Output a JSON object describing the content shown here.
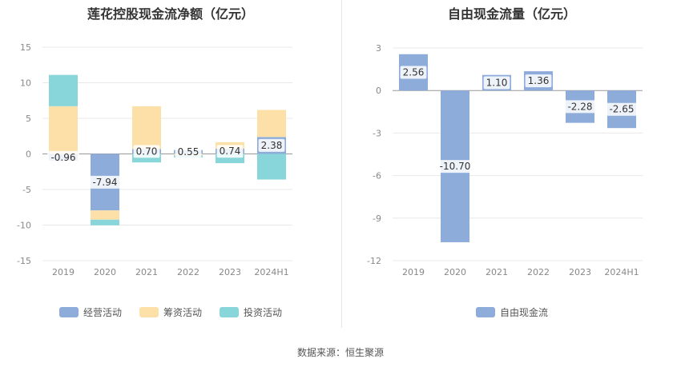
{
  "charts": [
    {
      "id": "left",
      "chart_data": {
        "type": "bar",
        "stacked": true,
        "title": "莲花控股现金流净额（亿元）",
        "categories": [
          "2019",
          "2020",
          "2021",
          "2022",
          "2023",
          "2024H1"
        ],
        "ylim": [
          -15,
          15
        ],
        "yticks": [
          15,
          10,
          5,
          0,
          -5,
          -10,
          -15
        ],
        "grid": true,
        "legend_position": "bottom",
        "series": [
          {
            "name": "经营活动",
            "color": "#8eacda",
            "values": [
              -0.96,
              -7.94,
              0.7,
              0.55,
              0.74,
              2.38
            ]
          },
          {
            "name": "筹资活动",
            "color": "#fddfa8",
            "values": [
              6.7,
              -1.3,
              6.0,
              -0.2,
              0.9,
              3.8
            ]
          },
          {
            "name": "投资活动",
            "color": "#88d6d9",
            "values": [
              4.4,
              -0.8,
              -1.2,
              -0.3,
              -1.3,
              -3.6
            ]
          }
        ],
        "data_labels": [
          "-0.96",
          "-7.94",
          "0.70",
          "0.55",
          "0.74",
          "2.38"
        ]
      }
    },
    {
      "id": "right",
      "chart_data": {
        "type": "bar",
        "title": "自由现金流量（亿元）",
        "categories": [
          "2019",
          "2020",
          "2021",
          "2022",
          "2023",
          "2024H1"
        ],
        "ylim": [
          -12,
          3
        ],
        "yticks": [
          3,
          0,
          -3,
          -6,
          -9,
          -12
        ],
        "grid": true,
        "legend_position": "bottom",
        "series": [
          {
            "name": "自由现金流",
            "color": "#8eacda",
            "values": [
              2.56,
              -10.7,
              1.1,
              1.36,
              -2.28,
              -2.65
            ]
          }
        ],
        "data_labels": [
          "2.56",
          "-10.70",
          "1.10",
          "1.36",
          "-2.28",
          "-2.65"
        ]
      }
    }
  ],
  "source_text": "数据来源：恒生聚源"
}
